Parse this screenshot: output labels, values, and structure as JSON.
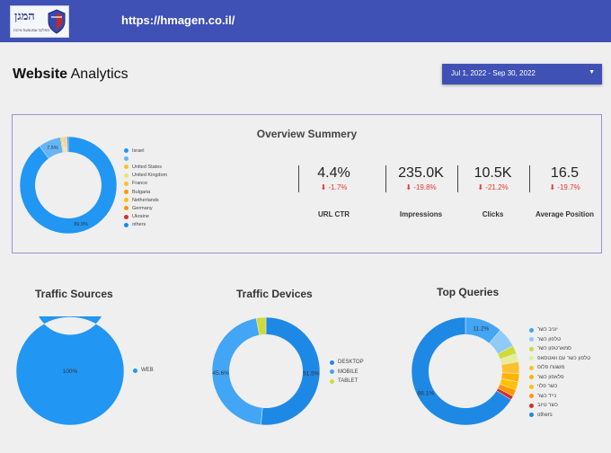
{
  "header": {
    "logo_text": "המגן",
    "logo_subtext": "מחלקה שמטמעת איכות",
    "url": "https://hmagen.co.il/"
  },
  "page": {
    "title_bold": "Website",
    "title_rest": " Analytics",
    "date_range": "Jul 1, 2022 - Sep 30, 2022"
  },
  "overview": {
    "title": "Overview Summery",
    "chart_data": {
      "type": "pie",
      "donut": true,
      "categories": [
        "Israel",
        "",
        "United States",
        "United Kingdom",
        "France",
        "Bulgaria",
        "Netherlands",
        "Germany",
        "Ukraine",
        "others"
      ],
      "values": [
        89.9,
        7.5,
        0.4,
        0.4,
        0.3,
        0.3,
        0.3,
        0.3,
        0.2,
        0.4
      ],
      "labels_shown": [
        "89.9%",
        "7.5%"
      ],
      "colors": [
        "#2196f3",
        "#64b5f6",
        "#fbc02d",
        "#e6e66f",
        "#fbc02d",
        "#ff9800",
        "#ffc107",
        "#ff9800",
        "#d32f2f",
        "#1e88e5"
      ]
    },
    "metrics": [
      {
        "value": "4.4%",
        "change": "-1.7%",
        "label": "URL CTR"
      },
      {
        "value": "235.0K",
        "change": "-19.8%",
        "label": "Impressions"
      },
      {
        "value": "10.5K",
        "change": "-21.2%",
        "label": "Clicks"
      },
      {
        "value": "16.5",
        "change": "-19.7%",
        "label": "Average Position"
      }
    ]
  },
  "traffic_sources": {
    "title": "Traffic Sources",
    "chart_data": {
      "type": "pie",
      "donut": true,
      "categories": [
        "WEB"
      ],
      "values": [
        100
      ],
      "labels_shown": [
        "100%"
      ],
      "colors": [
        "#2196f3"
      ]
    }
  },
  "traffic_devices": {
    "title": "Traffic Devices",
    "chart_data": {
      "type": "pie",
      "donut": true,
      "categories": [
        "DESKTOP",
        "MOBILE",
        "TABLET"
      ],
      "values": [
        51.5,
        45.6,
        2.9
      ],
      "labels_shown": [
        "51.5%",
        "45.6%",
        ""
      ],
      "colors": [
        "#1e88e5",
        "#42a5f5",
        "#cddc39"
      ]
    }
  },
  "top_queries": {
    "title": "Top Queries",
    "chart_data": {
      "type": "pie",
      "donut": true,
      "categories": [
        "יוניב כשר",
        "טלפון כשר",
        "סמארטפון כשר",
        "טלפון כשר עם וואטסאפ",
        "משגוח פלוס",
        "פלאפון כשר",
        "כשר פלוי",
        "נייד כשר",
        "כשר טיוב",
        "others"
      ],
      "values": [
        11.2,
        6.0,
        2.5,
        2.5,
        3.5,
        2.5,
        2.5,
        2.0,
        1.2,
        66.1
      ],
      "labels_shown": [
        "11.2%",
        "",
        "",
        "",
        "",
        "",
        "",
        "",
        "",
        "66.1%"
      ],
      "colors": [
        "#42a5f5",
        "#90caf9",
        "#cddc39",
        "#e6ee9c",
        "#fbc02d",
        "#ffb300",
        "#ffc107",
        "#ff9800",
        "#d32f2f",
        "#1e88e5"
      ]
    }
  }
}
